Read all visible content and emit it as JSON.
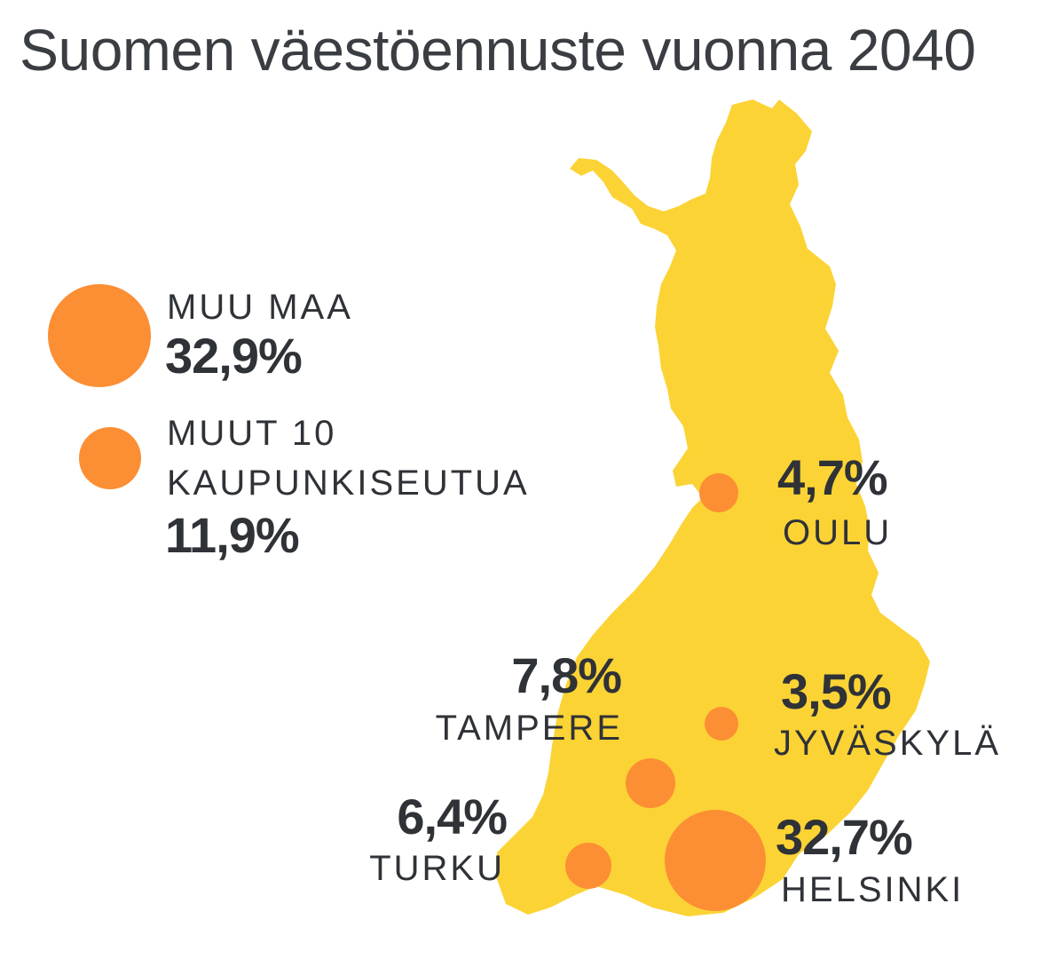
{
  "title": "Suomen väestöennuste vuonna 2040",
  "colors": {
    "land": "#fbd335",
    "bubble": "#fc8e34",
    "text": "#2f3237"
  },
  "legend": [
    {
      "label": "MUU MAA",
      "value": "32,9%",
      "share": 32.9
    },
    {
      "label_line1": "MUUT 10",
      "label_line2": "KAUPUNKISEUTUA",
      "value": "11,9%",
      "share": 11.9
    }
  ],
  "cities": [
    {
      "name": "OULU",
      "value": "4,7%",
      "share": 4.7
    },
    {
      "name": "TAMPERE",
      "value": "7,8%",
      "share": 7.8
    },
    {
      "name": "JYVÄSKYLÄ",
      "value": "3,5%",
      "share": 3.5
    },
    {
      "name": "TURKU",
      "value": "6,4%",
      "share": 6.4
    },
    {
      "name": "HELSINKI",
      "value": "32,7%",
      "share": 32.7
    }
  ]
}
